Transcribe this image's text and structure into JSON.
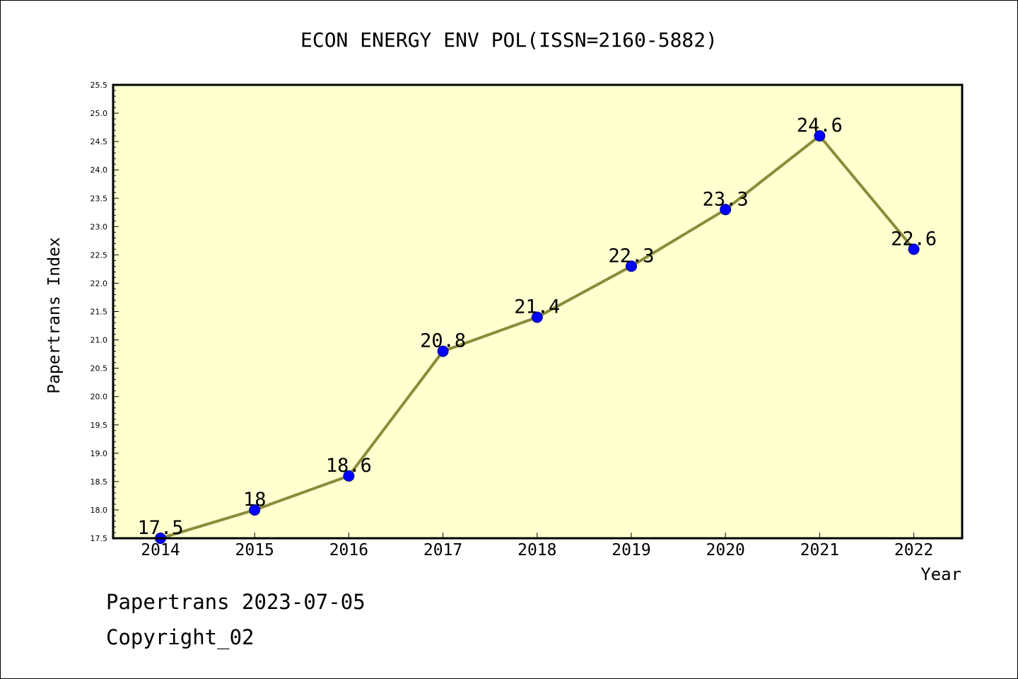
{
  "chart_data": {
    "type": "line",
    "title": "ECON ENERGY ENV POL(ISSN=2160-5882)",
    "xlabel": "Year",
    "ylabel": "Papertrans Index",
    "categories": [
      "2014",
      "2015",
      "2016",
      "2017",
      "2018",
      "2019",
      "2020",
      "2021",
      "2022"
    ],
    "values": [
      17.5,
      18,
      18.6,
      20.8,
      21.4,
      22.3,
      23.3,
      24.6,
      22.6
    ],
    "data_labels": [
      "17.5",
      "18",
      "18.6",
      "20.8",
      "21.4",
      "22.3",
      "23.3",
      "24.6",
      "22.6"
    ],
    "ylim": [
      17.5,
      25.5
    ],
    "yticks": [
      "17.5",
      "18.0",
      "18.5",
      "19.0",
      "19.5",
      "20.0",
      "20.5",
      "21.0",
      "21.5",
      "22.0",
      "22.5",
      "23.0",
      "23.5",
      "24.0",
      "24.5",
      "25.0",
      "25.5"
    ],
    "grid": false,
    "legend": "none",
    "colors": {
      "plot_background": "#ffffd0",
      "line": "#8b8b3a",
      "marker": "#0000ff"
    }
  },
  "footer": {
    "source_line": "Papertrans 2023-07-05",
    "copyright_line": "Copyright_02"
  }
}
